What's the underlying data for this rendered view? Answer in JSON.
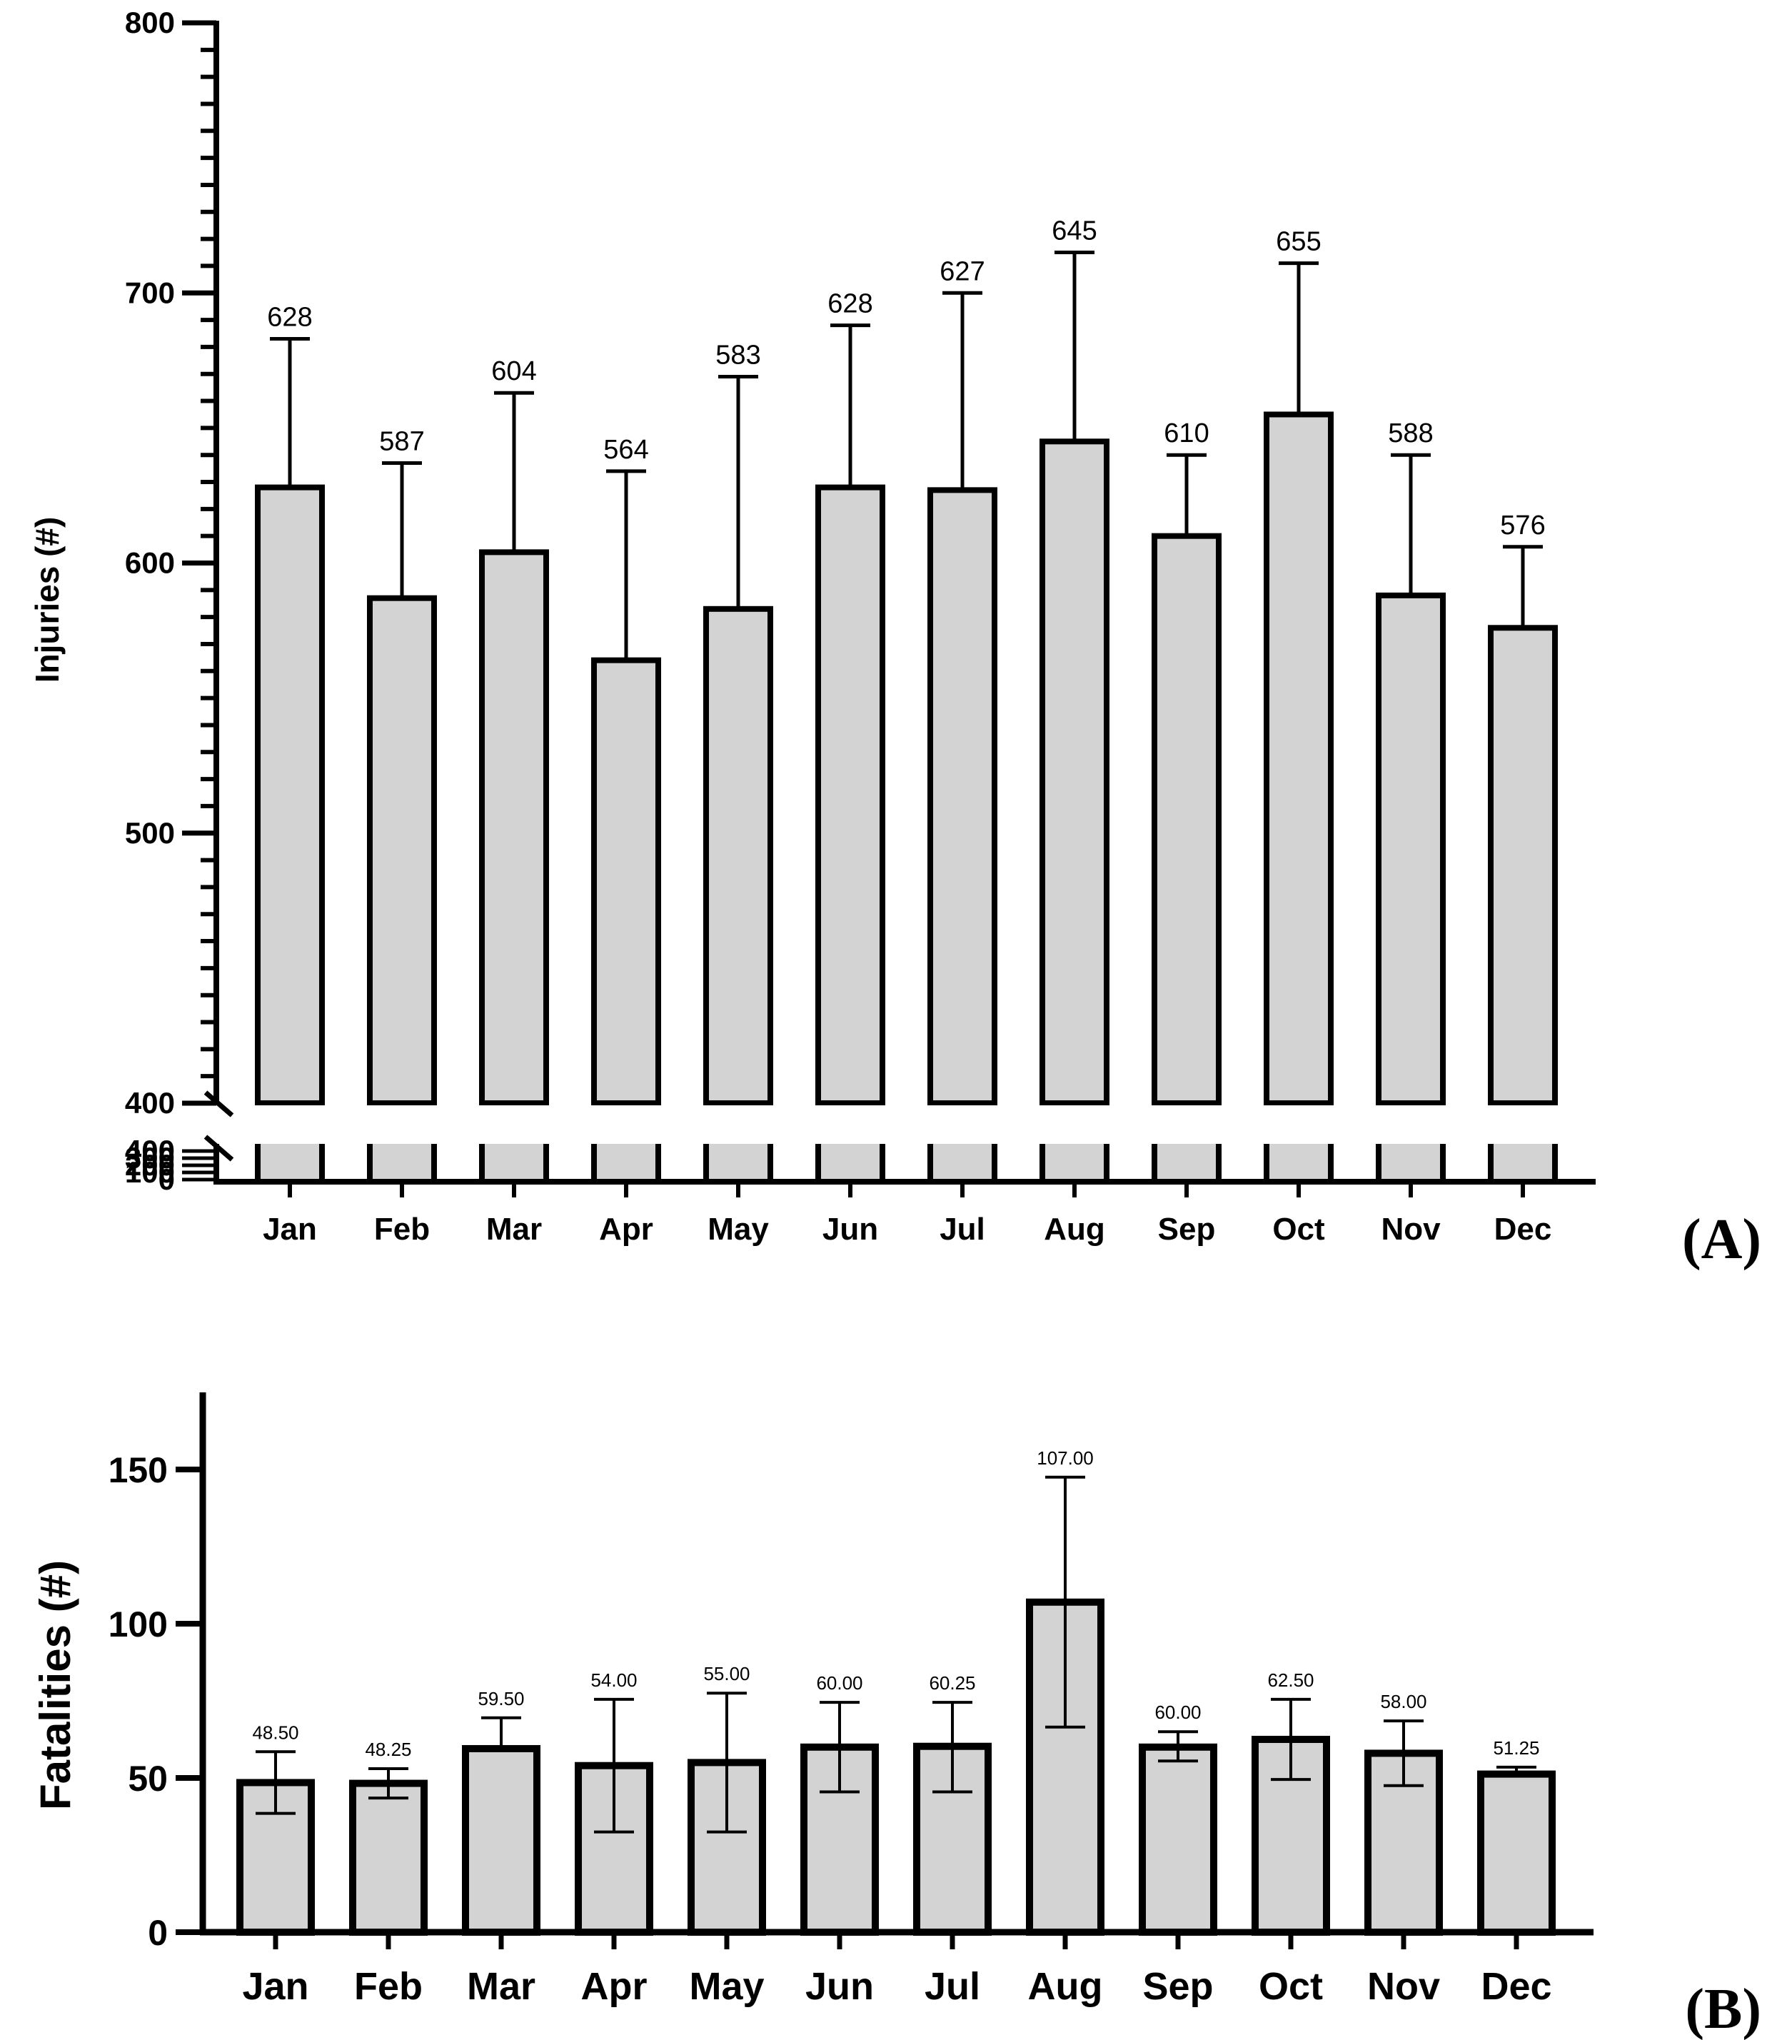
{
  "chart_data": [
    {
      "panel_label": "(A)",
      "type": "bar",
      "ylabel": "Injuries (#)",
      "xlabel": "",
      "categories": [
        "Jan",
        "Feb",
        "Mar",
        "Apr",
        "May",
        "Jun",
        "Jul",
        "Aug",
        "Sep",
        "Oct",
        "Nov",
        "Dec"
      ],
      "values": [
        628,
        587,
        604,
        564,
        583,
        628,
        627,
        645,
        610,
        655,
        588,
        576
      ],
      "value_labels": [
        "628",
        "587",
        "604",
        "564",
        "583",
        "628",
        "627",
        "645",
        "610",
        "655",
        "588",
        "576"
      ],
      "error_upper": [
        683,
        637,
        663,
        634,
        669,
        688,
        700,
        715,
        640,
        711,
        640,
        606
      ],
      "ylim": [
        400,
        800
      ],
      "yticks": [
        400,
        500,
        600,
        700,
        800
      ],
      "ytick_labels": [
        "400",
        "500",
        "600",
        "700",
        "800"
      ],
      "axis_break": true,
      "lower_segment": {
        "range": [
          0,
          400
        ],
        "tick_labels": [
          "400",
          "300",
          "200",
          "100",
          "0"
        ]
      },
      "bar_color": "#d3d3d3",
      "edge_color": "#000000"
    },
    {
      "panel_label": "(B)",
      "type": "bar",
      "ylabel": "Fatalities (#)",
      "xlabel": "",
      "categories": [
        "Jan",
        "Feb",
        "Mar",
        "Apr",
        "May",
        "Jun",
        "Jul",
        "Aug",
        "Sep",
        "Oct",
        "Nov",
        "Dec"
      ],
      "values": [
        48.5,
        48.25,
        59.5,
        54.0,
        55.0,
        60.0,
        60.25,
        107.0,
        60.0,
        62.5,
        58.0,
        51.25
      ],
      "value_labels": [
        "48.50",
        "48.25",
        "59.50",
        "54.00",
        "55.00",
        "60.00",
        "60.25",
        "107.00",
        "60.00",
        "62.50",
        "58.00",
        "51.25"
      ],
      "error_lower": [
        38.5,
        43.5,
        59.5,
        32.5,
        32.5,
        45.5,
        45.5,
        66.5,
        55.5,
        49.5,
        47.5,
        51.25
      ],
      "error_upper": [
        58.5,
        53.0,
        69.5,
        75.5,
        77.5,
        74.5,
        74.5,
        147.5,
        65.0,
        75.5,
        68.5,
        53.5
      ],
      "ylim": [
        0,
        175
      ],
      "yticks": [
        0,
        50,
        100,
        150
      ],
      "ytick_labels": [
        "0",
        "50",
        "100",
        "150"
      ],
      "bar_color": "#d3d3d3",
      "edge_color": "#000000"
    }
  ]
}
